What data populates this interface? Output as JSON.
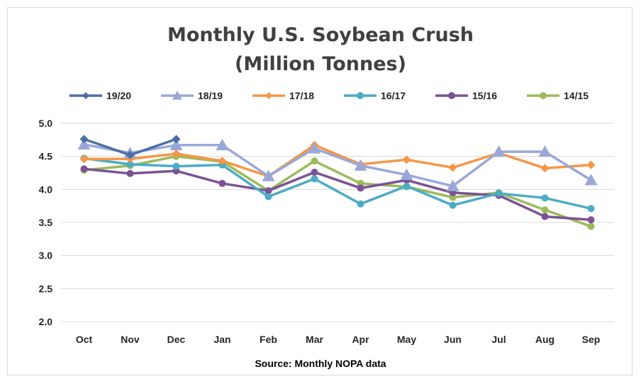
{
  "chart_data": {
    "type": "line",
    "title_line1": "Monthly U.S. Soybean Crush",
    "title_line2": "(Million Tonnes)",
    "source": "Source: Monthly NOPA data",
    "categories": [
      "Oct",
      "Nov",
      "Dec",
      "Jan",
      "Feb",
      "Mar",
      "Apr",
      "May",
      "Jun",
      "Jul",
      "Aug",
      "Sep"
    ],
    "ylim": [
      2.0,
      5.0
    ],
    "yticks": [
      "5.0",
      "4.5",
      "4.0",
      "3.5",
      "3.0",
      "2.5",
      "2.0"
    ],
    "grid": true,
    "legend_position": "top",
    "series": [
      {
        "name": "19/20",
        "color": "#4a6fa5",
        "marker": "diamond",
        "values": [
          4.76,
          4.52,
          4.76,
          null,
          null,
          null,
          null,
          null,
          null,
          null,
          null,
          null
        ]
      },
      {
        "name": "18/19",
        "color": "#9aa8d8",
        "marker": "triangle",
        "values": [
          4.68,
          4.55,
          4.67,
          4.67,
          4.2,
          4.62,
          4.36,
          4.22,
          4.05,
          4.57,
          4.57,
          4.14
        ]
      },
      {
        "name": "17/18",
        "color": "#f79646",
        "marker": "diamond",
        "values": [
          4.46,
          4.46,
          4.54,
          4.43,
          4.2,
          4.67,
          4.38,
          4.45,
          4.33,
          4.55,
          4.32,
          4.37
        ]
      },
      {
        "name": "16/17",
        "color": "#4bacc6",
        "marker": "circle",
        "values": [
          4.47,
          4.38,
          4.35,
          4.37,
          3.89,
          4.16,
          3.78,
          4.05,
          3.76,
          3.94,
          3.87,
          3.71
        ]
      },
      {
        "name": "15/16",
        "color": "#7c5295",
        "marker": "circle",
        "values": [
          4.31,
          4.24,
          4.28,
          4.09,
          3.98,
          4.26,
          4.02,
          4.14,
          3.95,
          3.91,
          3.59,
          3.54
        ]
      },
      {
        "name": "14/15",
        "color": "#9bbb59",
        "marker": "circle",
        "values": [
          4.29,
          4.36,
          4.5,
          4.42,
          3.98,
          4.43,
          4.09,
          4.04,
          3.88,
          3.95,
          3.69,
          3.44
        ]
      }
    ]
  }
}
